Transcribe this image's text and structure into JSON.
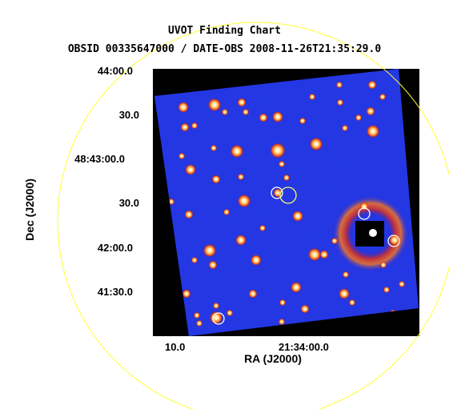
{
  "header": {
    "title": "UVOT Finding Chart",
    "subtitle": "OBSID 00335647000 / DATE-OBS 2008-11-26T21:35:29.0"
  },
  "axes": {
    "dec_label": "Dec (J2000)",
    "ra_label": "RA (J2000)",
    "dec_ticks": [
      "44:00.0",
      "30.0",
      "48:43:00.0",
      "30.0",
      "42:00.0",
      "41:30.0"
    ],
    "ra_ticks": [
      "10.0",
      "21:34:00.0"
    ]
  },
  "colors": {
    "background": "#000000",
    "field": "#1a24d8",
    "star": "#ffffff",
    "star_halo": "#ff7a1a",
    "marker": "#ffffff",
    "error_circle": "#ffff33"
  }
}
